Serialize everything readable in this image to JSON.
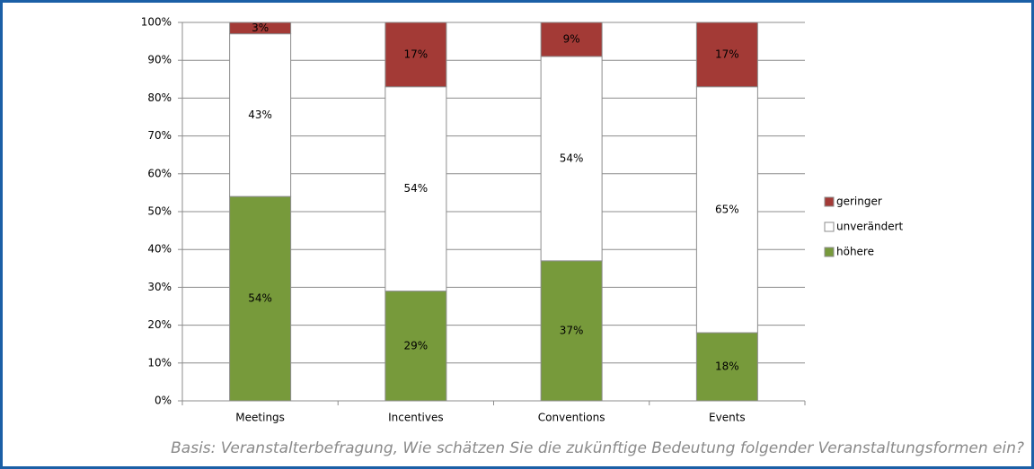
{
  "chart_data": {
    "type": "stacked_bar",
    "categories": [
      "Meetings",
      "Incentives",
      "Conventions",
      "Events"
    ],
    "series": [
      {
        "name": "höhere",
        "color": "#779a3b",
        "values": [
          54,
          29,
          37,
          18
        ],
        "value_labels": [
          "54%",
          "29%",
          "37%",
          "18%"
        ]
      },
      {
        "name": "unverändert",
        "color": "#ffffff",
        "values": [
          43,
          54,
          54,
          65
        ],
        "value_labels": [
          "43%",
          "54%",
          "54%",
          "65%"
        ]
      },
      {
        "name": "geringer",
        "color": "#a33a36",
        "values": [
          3,
          17,
          9,
          17
        ],
        "value_labels": [
          "3%",
          "17%",
          "9%",
          "17%"
        ]
      }
    ],
    "ylim": [
      0,
      100
    ],
    "yticks": [
      {
        "value": 0,
        "label": "0%"
      },
      {
        "value": 10,
        "label": "10%"
      },
      {
        "value": 20,
        "label": "20%"
      },
      {
        "value": 30,
        "label": "30%"
      },
      {
        "value": 40,
        "label": "40%"
      },
      {
        "value": 50,
        "label": "50%"
      },
      {
        "value": 60,
        "label": "60%"
      },
      {
        "value": 70,
        "label": "70%"
      },
      {
        "value": 80,
        "label": "80%"
      },
      {
        "value": 90,
        "label": "90%"
      },
      {
        "value": 100,
        "label": "100%"
      }
    ],
    "grid": true,
    "legend": "right",
    "caption": "Basis: Veranstalterbefragung, Wie schätzen Sie die zukünftige Bedeutung folgender Veranstaltungsformen ein?"
  }
}
